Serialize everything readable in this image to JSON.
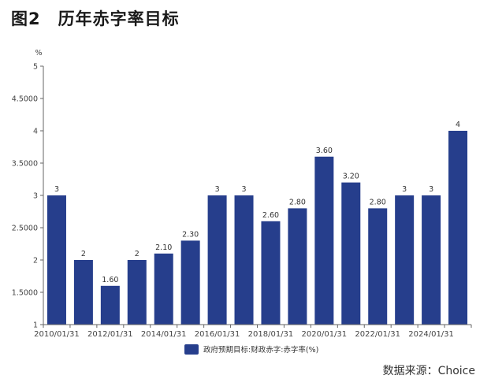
{
  "figure": {
    "title": "图2　历年赤字率目标",
    "source": "数据来源：Choice"
  },
  "chart_data": {
    "type": "bar",
    "y_unit": "%",
    "categories": [
      "2010/01/31",
      "2011/01/31",
      "2012/01/31",
      "2013/01/31",
      "2014/01/31",
      "2015/01/31",
      "2016/01/31",
      "2017/01/31",
      "2018/01/31",
      "2019/01/31",
      "2020/01/31",
      "2021/01/31",
      "2022/01/31",
      "2023/01/31",
      "2024/01/31",
      "2025/01/31"
    ],
    "x_tick_labels": [
      "2010/01/31",
      "2012/01/31",
      "2014/01/31",
      "2016/01/31",
      "2018/01/31",
      "2020/01/31",
      "2022/01/31",
      "2024/01/31"
    ],
    "series": [
      {
        "name": "政府预期目标:财政赤字:赤字率(%)",
        "values": [
          3,
          2,
          1.6,
          2,
          2.1,
          2.3,
          3,
          3,
          2.6,
          2.8,
          3.6,
          3.2,
          2.8,
          3,
          3,
          4
        ],
        "labels": [
          "3",
          "2",
          "1.60",
          "2",
          "2.10",
          "2.30",
          "3",
          "3",
          "2.60",
          "2.80",
          "3.60",
          "3.20",
          "2.80",
          "3",
          "3",
          "4"
        ],
        "color": "#263e8c"
      }
    ],
    "ylim": [
      1,
      5
    ],
    "y_ticks": [
      1,
      1.5,
      2,
      2.5,
      3,
      3.5,
      4,
      4.5,
      5
    ],
    "y_tick_labels": [
      "1",
      "1.5000",
      "2",
      "2.5000",
      "3",
      "3.5000",
      "4",
      "4.5000",
      "5"
    ],
    "legend_position": "bottom-center",
    "grid": false
  }
}
